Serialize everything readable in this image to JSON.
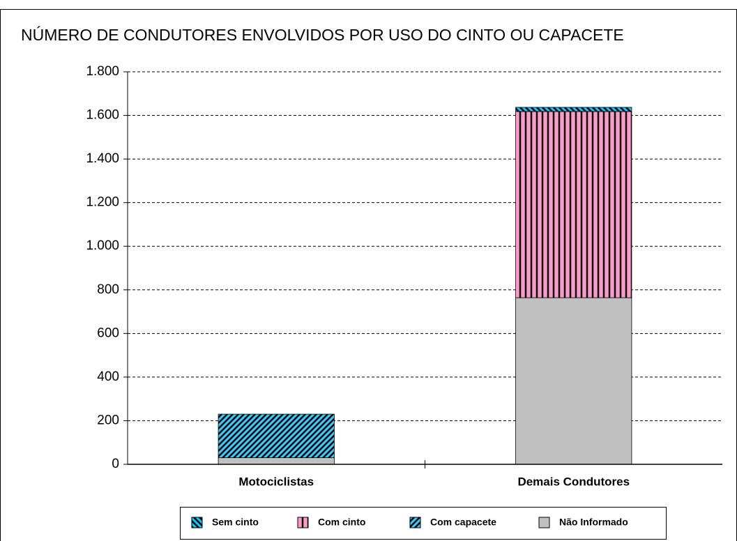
{
  "chart_data": {
    "type": "bar",
    "stacked": true,
    "title": "NÚMERO DE CONDUTORES ENVOLVIDOS POR USO DO CINTO OU CAPACETE",
    "categories": [
      "Motociclistas",
      "Demais Condutores"
    ],
    "series": [
      {
        "name": "Sem cinto",
        "color": "#00ccff",
        "pattern": "diagonal-back",
        "values": [
          0,
          19
        ]
      },
      {
        "name": "Com cinto",
        "color": "#ff99cc",
        "pattern": "vertical",
        "values": [
          0,
          854
        ]
      },
      {
        "name": "Com capacete",
        "color": "#33ccff",
        "pattern": "diagonal",
        "values": [
          200,
          0
        ]
      },
      {
        "name": "Não Informado",
        "color": "#c0c0c0",
        "pattern": "solid",
        "values": [
          30,
          764
        ]
      }
    ],
    "stack_order": [
      3,
      2,
      1,
      0
    ],
    "ylim": [
      0,
      1800
    ],
    "yticks": [
      0,
      200,
      400,
      600,
      800,
      {
        "value": 1000,
        "label": "1.000"
      },
      {
        "value": 1200,
        "label": "1.200"
      },
      {
        "value": 1400,
        "label": "1.400"
      },
      {
        "value": 1600,
        "label": "1.600"
      },
      {
        "value": 1800,
        "label": "1.800"
      }
    ],
    "grid": true,
    "legend": "bottom"
  }
}
